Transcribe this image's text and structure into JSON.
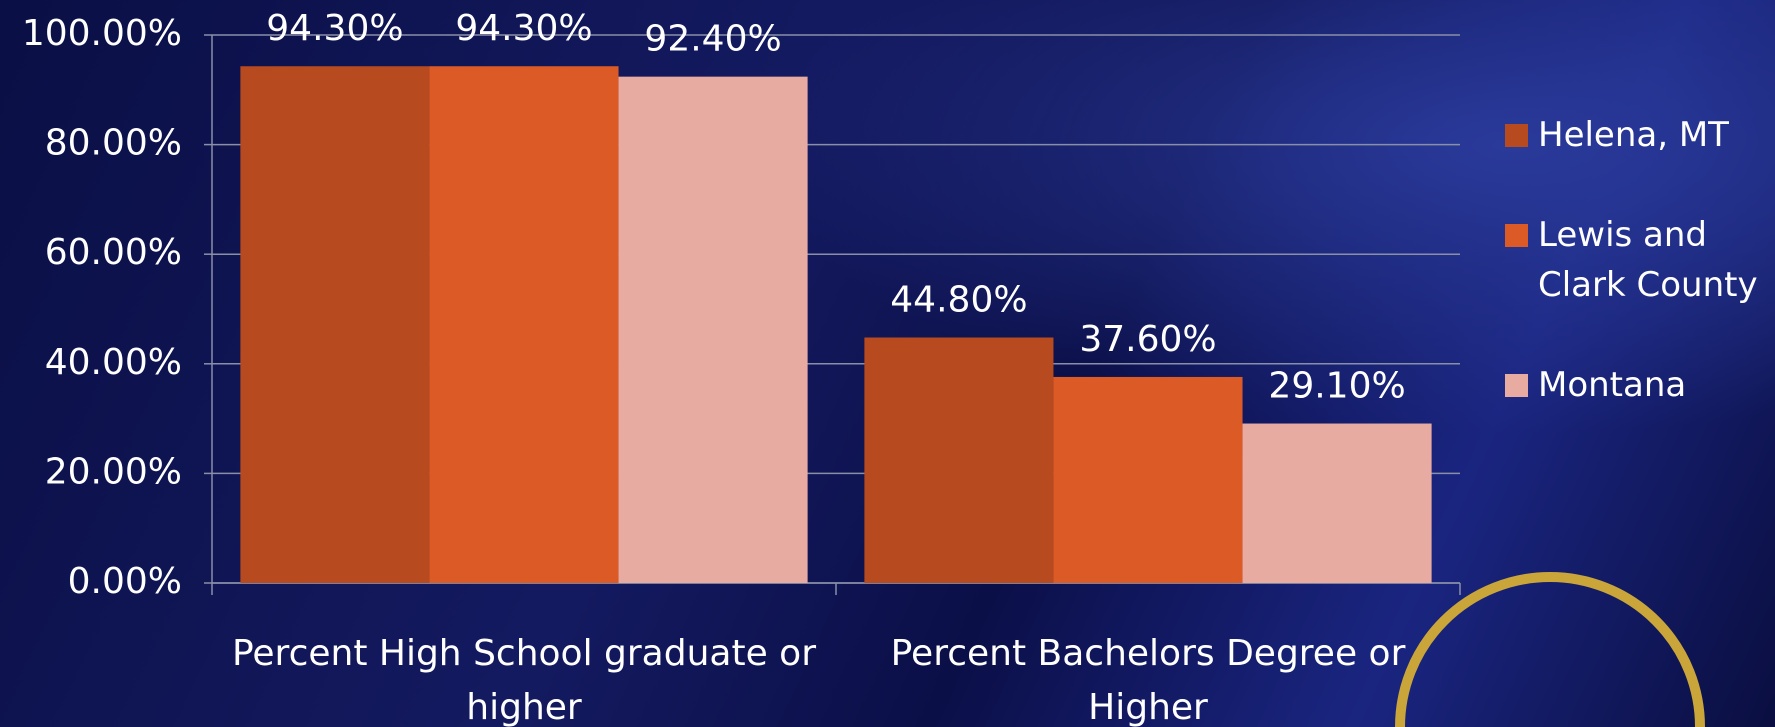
{
  "chart_data": {
    "type": "bar",
    "categories": [
      "Percent High School graduate or higher",
      "Percent Bachelors Degree or Higher"
    ],
    "series": [
      {
        "name": "Helena, MT",
        "color": "#b84a1f",
        "values": [
          94.3,
          44.8
        ],
        "value_labels": [
          "94.30%",
          "44.80%"
        ]
      },
      {
        "name": "Lewis and Clark County",
        "color": "#dc5a26",
        "values": [
          94.3,
          37.6
        ],
        "value_labels": [
          "94.30%",
          "37.60%"
        ]
      },
      {
        "name": "Montana",
        "color": "#e8aba2",
        "values": [
          92.4,
          29.1
        ],
        "value_labels": [
          "92.40%",
          "29.10%"
        ]
      }
    ],
    "ylim": [
      0,
      100
    ],
    "yticks": [
      {
        "value": 0,
        "label": "0.00%"
      },
      {
        "value": 20,
        "label": "20.00%"
      },
      {
        "value": 40,
        "label": "40.00%"
      },
      {
        "value": 60,
        "label": "60.00%"
      },
      {
        "value": 80,
        "label": "80.00%"
      },
      {
        "value": 100,
        "label": "100.00%"
      }
    ],
    "grid": true,
    "legend": "right"
  }
}
